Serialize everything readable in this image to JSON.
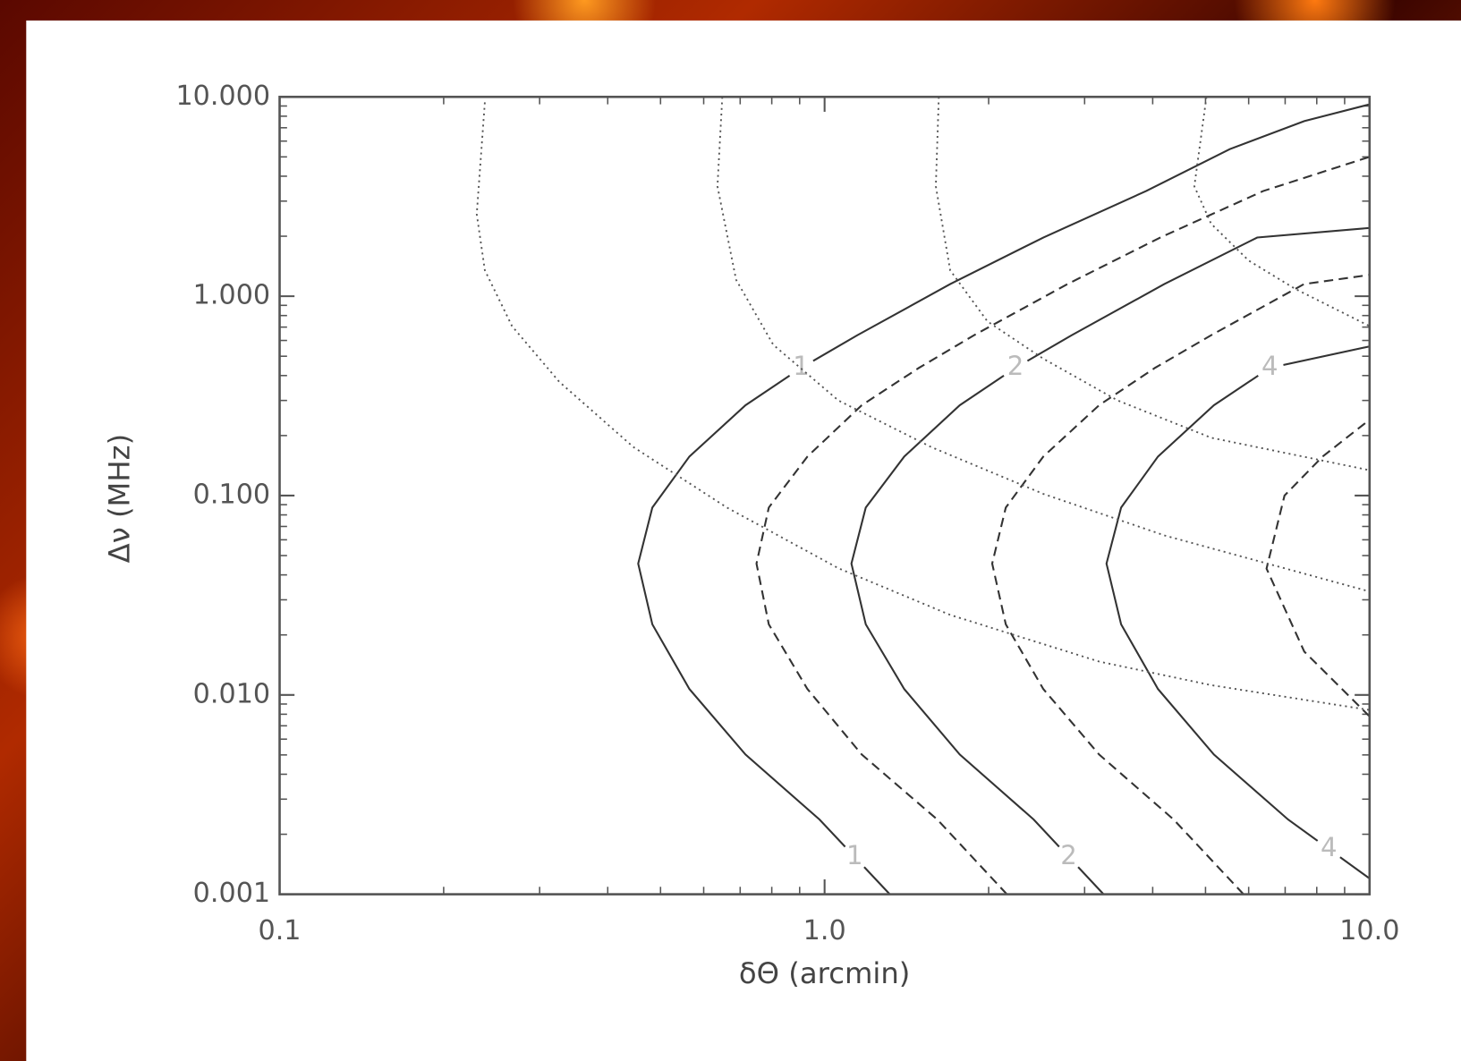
{
  "chart_data": {
    "type": "contour",
    "xlabel": "δΘ (arcmin)",
    "ylabel": "Δν (MHz)",
    "xlim": [
      0.1,
      10
    ],
    "ylim": [
      0.001,
      10
    ],
    "xscale": "log",
    "yscale": "log",
    "xticks": [
      0.1,
      {
        "value": 1,
        "label": "1.0"
      },
      {
        "value": 10,
        "label": "10.0"
      }
    ],
    "yticks": [
      {
        "value": 0.001,
        "label": "0.001"
      },
      {
        "value": 0.01,
        "label": "0.010"
      },
      {
        "value": 0.1,
        "label": "0.100"
      },
      {
        "value": 1,
        "label": "1.000"
      },
      {
        "value": 10,
        "label": "10.000"
      }
    ],
    "xminorticks": [
      0.2,
      0.3,
      0.4,
      0.5,
      0.6,
      0.7,
      0.8,
      0.9,
      2,
      3,
      4,
      5,
      6,
      7,
      8,
      9
    ],
    "yminorticks": [
      0.002,
      0.003,
      0.004,
      0.005,
      0.006,
      0.007,
      0.008,
      0.009,
      0.02,
      0.03,
      0.04,
      0.05,
      0.06,
      0.07,
      0.08,
      0.09,
      0.2,
      0.3,
      0.4,
      0.5,
      0.6,
      0.7,
      0.8,
      0.9,
      2,
      3,
      4,
      5,
      6,
      7,
      8,
      9
    ],
    "series": [
      {
        "label": "1",
        "style": "solid",
        "color": "#333333",
        "x": [
          1.317,
          0.979,
          0.716,
          0.565,
          0.483,
          0.455,
          0.483,
          0.565,
          0.716,
          0.906,
          1.148,
          1.7,
          2.52,
          3.89,
          5.54,
          7.59,
          10
        ],
        "y": [
          0.001,
          0.00237,
          0.00502,
          0.0107,
          0.0226,
          0.0456,
          0.087,
          0.157,
          0.284,
          0.437,
          0.637,
          1.15,
          1.97,
          3.37,
          5.47,
          7.56,
          9.18
        ]
      },
      {
        "style": "dashed",
        "color": "#333333",
        "x": [
          2.16,
          1.61,
          1.17,
          0.93,
          0.79,
          0.75,
          0.79,
          0.93,
          1.17,
          1.49,
          1.88,
          2.79,
          4.13,
          6.38,
          10
        ],
        "y": [
          0.001,
          0.00237,
          0.00502,
          0.0107,
          0.0226,
          0.0456,
          0.087,
          0.157,
          0.284,
          0.437,
          0.637,
          1.15,
          1.97,
          3.37,
          5.0
        ]
      },
      {
        "label": "2",
        "style": "solid",
        "color": "#333333",
        "x": [
          3.25,
          2.42,
          1.77,
          1.4,
          1.19,
          1.12,
          1.19,
          1.4,
          1.77,
          2.24,
          2.84,
          4.2,
          6.22,
          10
        ],
        "y": [
          0.001,
          0.00237,
          0.00502,
          0.0107,
          0.0226,
          0.0456,
          0.087,
          0.157,
          0.284,
          0.437,
          0.637,
          1.15,
          1.97,
          2.2
        ]
      },
      {
        "style": "dashed",
        "color": "#333333",
        "x": [
          5.87,
          4.37,
          3.19,
          2.52,
          2.15,
          2.03,
          2.15,
          2.52,
          3.19,
          4.04,
          5.12,
          7.58,
          10
        ],
        "y": [
          0.001,
          0.00237,
          0.00502,
          0.0107,
          0.0226,
          0.0456,
          0.087,
          0.157,
          0.284,
          0.437,
          0.637,
          1.15,
          1.28
        ]
      },
      {
        "label": "4",
        "style": "solid",
        "color": "#333333",
        "x": [
          10,
          7.09,
          5.18,
          4.09,
          3.5,
          3.29,
          3.5,
          4.09,
          5.18,
          6.56,
          10
        ],
        "y": [
          0.0012,
          0.00237,
          0.00502,
          0.0107,
          0.0226,
          0.0456,
          0.087,
          0.157,
          0.284,
          0.437,
          0.56
        ]
      },
      {
        "style": "dashed",
        "color": "#333333",
        "x": [
          10,
          7.59,
          6.47,
          6.98,
          8.2,
          10
        ],
        "y": [
          0.0078,
          0.0165,
          0.043,
          0.1,
          0.157,
          0.24
        ]
      },
      {
        "style": "dotted",
        "color": "#555555",
        "x": [
          0.238,
          0.23,
          0.238,
          0.267,
          0.326,
          0.446,
          0.662,
          1.06,
          1.7,
          3.19,
          5.12,
          10
        ],
        "y": [
          9.38,
          2.58,
          1.35,
          0.708,
          0.372,
          0.175,
          0.087,
          0.0432,
          0.0252,
          0.0147,
          0.0112,
          0.0084
        ]
      },
      {
        "style": "dotted",
        "color": "#555555",
        "x": [
          0.649,
          0.636,
          0.688,
          0.805,
          1.06,
          1.57,
          2.52,
          4.21,
          10
        ],
        "y": [
          10,
          3.56,
          1.21,
          0.571,
          0.3,
          0.175,
          0.102,
          0.063,
          0.033
        ]
      },
      {
        "style": "dotted",
        "color": "#555555",
        "x": [
          1.62,
          1.6,
          1.7,
          1.99,
          2.52,
          3.45,
          5.12,
          10
        ],
        "y": [
          10,
          3.56,
          1.35,
          0.748,
          0.486,
          0.3,
          0.195,
          0.134
        ]
      },
      {
        "style": "dotted",
        "color": "#555555",
        "x": [
          5.02,
          4.77,
          5.12,
          6.0,
          7.3,
          10
        ],
        "y": [
          10,
          3.56,
          2.31,
          1.51,
          1.09,
          0.708
        ]
      }
    ]
  }
}
